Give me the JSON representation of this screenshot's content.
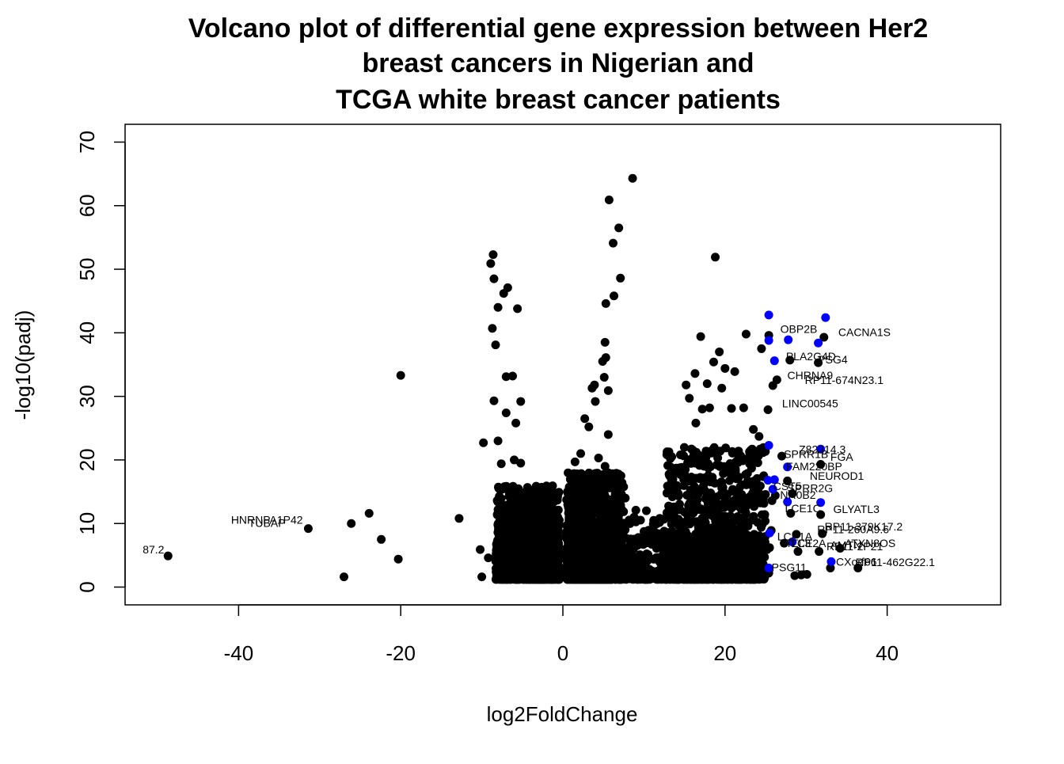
{
  "chart_data": {
    "type": "scatter",
    "title_lines": [
      "Volcano plot of differential gene expression between Her2",
      "breast cancers in Nigerian and",
      "TCGA white breast cancer patients"
    ],
    "xlabel": "log2FoldChange",
    "ylabel": "-log10(padj)",
    "xlim": [
      -54,
      54
    ],
    "ylim": [
      -2.8,
      72.8
    ],
    "xticks": [
      -40,
      -20,
      0,
      20,
      40
    ],
    "yticks": [
      0,
      10,
      20,
      30,
      40,
      50,
      60,
      70
    ],
    "grid": false,
    "legend": "none",
    "colors": {
      "default_point": "#000000",
      "highlight_point": "#0000ff"
    },
    "points": [
      {
        "x": -48.7,
        "y": 4.9
      },
      {
        "x": -31.4,
        "y": 9.2
      },
      {
        "x": -27.0,
        "y": 1.6
      },
      {
        "x": -26.1,
        "y": 10.0
      },
      {
        "x": -23.9,
        "y": 11.6
      },
      {
        "x": -22.4,
        "y": 7.5
      },
      {
        "x": -20.3,
        "y": 4.4
      },
      {
        "x": -20.0,
        "y": 33.3
      },
      {
        "x": -12.8,
        "y": 10.8
      },
      {
        "x": -10.0,
        "y": 1.6
      },
      {
        "x": -10.2,
        "y": 5.9
      },
      {
        "x": -9.8,
        "y": 22.7
      },
      {
        "x": -9.2,
        "y": 4.6
      },
      {
        "x": -8.9,
        "y": 50.9
      },
      {
        "x": -8.6,
        "y": 52.3
      },
      {
        "x": -8.5,
        "y": 48.5
      },
      {
        "x": -8.7,
        "y": 40.7
      },
      {
        "x": -8.3,
        "y": 38.1
      },
      {
        "x": -8.0,
        "y": 44.0
      },
      {
        "x": -7.3,
        "y": 46.2
      },
      {
        "x": -6.8,
        "y": 47.1
      },
      {
        "x": -5.6,
        "y": 43.8
      },
      {
        "x": -8.5,
        "y": 29.3
      },
      {
        "x": -7.0,
        "y": 33.1
      },
      {
        "x": -6.2,
        "y": 33.2
      },
      {
        "x": -7.0,
        "y": 27.4
      },
      {
        "x": -5.8,
        "y": 25.8
      },
      {
        "x": -8.0,
        "y": 23.0
      },
      {
        "x": -5.2,
        "y": 29.2
      },
      {
        "x": -6.0,
        "y": 20.0
      },
      {
        "x": -7.6,
        "y": 19.4
      },
      {
        "x": -5.2,
        "y": 19.5
      },
      {
        "x": -8.1,
        "y": 13.6
      },
      {
        "x": -7.2,
        "y": 15.8
      },
      {
        "x": -6.5,
        "y": 12.5
      },
      {
        "x": -5.5,
        "y": 14.1
      },
      {
        "x": -4.8,
        "y": 12.3
      },
      {
        "x": -2.0,
        "y": 13.5
      },
      {
        "x": -4.2,
        "y": 8.1
      },
      {
        "x": -3.0,
        "y": 6.4
      },
      {
        "x": 8.6,
        "y": 64.3
      },
      {
        "x": 5.7,
        "y": 60.9
      },
      {
        "x": 6.9,
        "y": 56.5
      },
      {
        "x": 6.2,
        "y": 54.1
      },
      {
        "x": 7.1,
        "y": 48.6
      },
      {
        "x": 6.3,
        "y": 45.8
      },
      {
        "x": 5.3,
        "y": 44.6
      },
      {
        "x": 5.2,
        "y": 38.5
      },
      {
        "x": 4.9,
        "y": 35.5
      },
      {
        "x": 5.3,
        "y": 36.1
      },
      {
        "x": 5.1,
        "y": 33.0
      },
      {
        "x": 3.6,
        "y": 31.3
      },
      {
        "x": 3.9,
        "y": 31.8
      },
      {
        "x": 5.6,
        "y": 30.9
      },
      {
        "x": 4.0,
        "y": 29.2
      },
      {
        "x": 2.7,
        "y": 26.5
      },
      {
        "x": 3.2,
        "y": 25.2
      },
      {
        "x": 5.6,
        "y": 24.0
      },
      {
        "x": 1.5,
        "y": 19.7
      },
      {
        "x": 2.2,
        "y": 21.0
      },
      {
        "x": 2.9,
        "y": 17.3
      },
      {
        "x": 4.4,
        "y": 20.3
      },
      {
        "x": 5.2,
        "y": 19.0
      },
      {
        "x": 6.6,
        "y": 17.9
      },
      {
        "x": 7.7,
        "y": 14.0
      },
      {
        "x": 9.0,
        "y": 12.1
      },
      {
        "x": 10.3,
        "y": 12.0
      },
      {
        "x": 11.2,
        "y": 10.5
      },
      {
        "x": 12.5,
        "y": 8.8
      },
      {
        "x": 13.3,
        "y": 12.1
      },
      {
        "x": 18.8,
        "y": 51.9
      },
      {
        "x": 17.0,
        "y": 39.4
      },
      {
        "x": 19.3,
        "y": 37.0
      },
      {
        "x": 18.6,
        "y": 35.4
      },
      {
        "x": 20.0,
        "y": 34.4
      },
      {
        "x": 21.2,
        "y": 33.9
      },
      {
        "x": 16.3,
        "y": 33.6
      },
      {
        "x": 15.2,
        "y": 31.8
      },
      {
        "x": 17.8,
        "y": 32.0
      },
      {
        "x": 19.6,
        "y": 31.3
      },
      {
        "x": 15.6,
        "y": 29.7
      },
      {
        "x": 17.2,
        "y": 28.0
      },
      {
        "x": 18.1,
        "y": 28.2
      },
      {
        "x": 20.8,
        "y": 28.1
      },
      {
        "x": 16.4,
        "y": 25.8
      },
      {
        "x": 22.3,
        "y": 28.2
      },
      {
        "x": 22.6,
        "y": 39.8
      },
      {
        "x": 24.5,
        "y": 37.5
      },
      {
        "x": 23.5,
        "y": 24.8
      },
      {
        "x": 24.2,
        "y": 23.7
      },
      {
        "x": 23.8,
        "y": 20.4
      },
      {
        "x": 14.5,
        "y": 20.8
      },
      {
        "x": 15.1,
        "y": 18.5
      },
      {
        "x": 16.3,
        "y": 19.5
      },
      {
        "x": 17.2,
        "y": 20.0
      },
      {
        "x": 18.4,
        "y": 21.5
      },
      {
        "x": 19.1,
        "y": 20.3
      },
      {
        "x": 20.5,
        "y": 18.0
      },
      {
        "x": 21.7,
        "y": 17.3
      },
      {
        "x": 13.5,
        "y": 14.2
      },
      {
        "x": 12.9,
        "y": 15.9
      },
      {
        "x": 14.1,
        "y": 15.6
      },
      {
        "x": 15.0,
        "y": 11.8
      },
      {
        "x": 16.0,
        "y": 14.5
      },
      {
        "x": 17.5,
        "y": 15.2
      },
      {
        "x": 19.5,
        "y": 13.0
      },
      {
        "x": 21.0,
        "y": 15.1
      },
      {
        "x": 22.8,
        "y": 16.7
      },
      {
        "x": 22.8,
        "y": 10.2
      },
      {
        "x": 23.6,
        "y": 8.3
      },
      {
        "x": 24.5,
        "y": 6.0
      },
      {
        "x": 25.4,
        "y": 39.6
      },
      {
        "x": 28.0,
        "y": 35.7
      },
      {
        "x": 25.9,
        "y": 31.7
      },
      {
        "x": 26.4,
        "y": 32.6
      },
      {
        "x": 25.3,
        "y": 27.9
      },
      {
        "x": 27.0,
        "y": 20.6
      },
      {
        "x": 27.7,
        "y": 16.7
      },
      {
        "x": 26.2,
        "y": 14.4
      },
      {
        "x": 25.8,
        "y": 13.6
      },
      {
        "x": 28.3,
        "y": 14.7
      },
      {
        "x": 28.1,
        "y": 11.6
      },
      {
        "x": 28.8,
        "y": 8.3
      },
      {
        "x": 29.0,
        "y": 5.6
      },
      {
        "x": 27.3,
        "y": 6.9
      },
      {
        "x": 25.7,
        "y": 8.9
      },
      {
        "x": 25.5,
        "y": 6.2
      },
      {
        "x": 25.2,
        "y": 5.9
      },
      {
        "x": 25.4,
        "y": 2.2
      },
      {
        "x": 28.6,
        "y": 1.8
      },
      {
        "x": 29.4,
        "y": 1.9
      },
      {
        "x": 30.1,
        "y": 2.0
      },
      {
        "x": 31.5,
        "y": 35.3
      },
      {
        "x": 32.2,
        "y": 39.3
      },
      {
        "x": 31.8,
        "y": 19.3
      },
      {
        "x": 31.8,
        "y": 11.4
      },
      {
        "x": 32.0,
        "y": 8.4
      },
      {
        "x": 31.6,
        "y": 5.6
      },
      {
        "x": 33.0,
        "y": 3.0
      },
      {
        "x": 34.2,
        "y": 6.1
      },
      {
        "x": 36.4,
        "y": 3.0
      }
    ],
    "highlighted_points": [
      {
        "x": 25.4,
        "y": 42.8
      },
      {
        "x": 32.4,
        "y": 42.4
      },
      {
        "x": 25.4,
        "y": 38.8
      },
      {
        "x": 27.8,
        "y": 38.9
      },
      {
        "x": 31.5,
        "y": 38.4
      },
      {
        "x": 26.1,
        "y": 35.6
      },
      {
        "x": 25.4,
        "y": 22.3
      },
      {
        "x": 31.8,
        "y": 21.7
      },
      {
        "x": 27.7,
        "y": 18.9
      },
      {
        "x": 25.3,
        "y": 16.8
      },
      {
        "x": 26.1,
        "y": 16.9
      },
      {
        "x": 25.9,
        "y": 15.4
      },
      {
        "x": 27.7,
        "y": 13.4
      },
      {
        "x": 31.8,
        "y": 13.3
      },
      {
        "x": 25.5,
        "y": 8.5
      },
      {
        "x": 28.3,
        "y": 7.1
      },
      {
        "x": 33.1,
        "y": 4.0
      },
      {
        "x": 25.4,
        "y": 3.0
      }
    ],
    "clusters": [
      {
        "x_min": -8.3,
        "x_max": -0.4,
        "y_min": 1.2,
        "y_max": 16.0,
        "count": 900
      },
      {
        "x_min": -6.0,
        "x_max": -0.4,
        "y_min": 1.2,
        "y_max": 9.0,
        "count": 500
      },
      {
        "x_min": 0.4,
        "x_max": 7.5,
        "y_min": 1.2,
        "y_max": 18.0,
        "count": 1100
      },
      {
        "x_min": 1.0,
        "x_max": 6.0,
        "y_min": 1.2,
        "y_max": 10.0,
        "count": 900
      },
      {
        "x_min": 7.0,
        "x_max": 13.0,
        "y_min": 1.2,
        "y_max": 11.0,
        "count": 250
      },
      {
        "x_min": 12.8,
        "x_max": 25.0,
        "y_min": 1.2,
        "y_max": 22.0,
        "count": 800
      },
      {
        "x_min": 12.8,
        "x_max": 24.0,
        "y_min": 1.2,
        "y_max": 9.0,
        "count": 400
      }
    ],
    "annotations": [
      {
        "text": "87.2",
        "x": -50.5,
        "y": 5.9
      },
      {
        "text": "HNRNPA1P42",
        "x": -36.5,
        "y": 10.6
      },
      {
        "text": "TUBAP",
        "x": -36.5,
        "y": 10.1
      },
      {
        "text": "OBP2B",
        "x": 29.1,
        "y": 40.6
      },
      {
        "text": "CACNA1S",
        "x": 37.2,
        "y": 40.1
      },
      {
        "text": "PLA2G4D",
        "x": 30.6,
        "y": 36.3
      },
      {
        "text": "PSG4",
        "x": 33.3,
        "y": 35.8
      },
      {
        "text": "CHRNA9",
        "x": 30.5,
        "y": 33.3
      },
      {
        "text": "RP11-674N23.1",
        "x": 34.7,
        "y": 32.6
      },
      {
        "text": "LINC00545",
        "x": 30.5,
        "y": 28.9
      },
      {
        "text": "Z82214.3",
        "x": 32.0,
        "y": 21.7
      },
      {
        "text": "SPRR1B",
        "x": 30.0,
        "y": 20.9
      },
      {
        "text": "FGA",
        "x": 34.4,
        "y": 20.5
      },
      {
        "text": "FAM220BP",
        "x": 31.0,
        "y": 19.0
      },
      {
        "text": "NEUROD1",
        "x": 33.8,
        "y": 17.5
      },
      {
        "text": "CST5",
        "x": 27.7,
        "y": 15.9
      },
      {
        "text": "SPRR2G",
        "x": 30.5,
        "y": 15.6
      },
      {
        "text": "NR0B2",
        "x": 29.0,
        "y": 14.5
      },
      {
        "text": "LCE1C",
        "x": 29.6,
        "y": 12.4
      },
      {
        "text": "GLYATL3",
        "x": 36.2,
        "y": 12.3
      },
      {
        "text": "RP11-379K17.2",
        "x": 37.1,
        "y": 9.5
      },
      {
        "text": "RP11-260A9.6",
        "x": 35.8,
        "y": 9.1
      },
      {
        "text": "LCE1A",
        "x": 28.6,
        "y": 8.0
      },
      {
        "text": "TTLL3",
        "x": 28.6,
        "y": 6.9
      },
      {
        "text": "LCE2A",
        "x": 30.3,
        "y": 6.9
      },
      {
        "text": "ATXN8OS",
        "x": 37.9,
        "y": 6.9
      },
      {
        "text": "AMTN",
        "x": 34.9,
        "y": 6.6
      },
      {
        "text": "RP11-2P21",
        "x": 36.0,
        "y": 6.4
      },
      {
        "text": "CXorf66",
        "x": 36.2,
        "y": 4.0
      },
      {
        "text": "RP11-462G22.1",
        "x": 41.0,
        "y": 3.9
      },
      {
        "text": "PSG11",
        "x": 27.9,
        "y": 3.1
      }
    ]
  }
}
